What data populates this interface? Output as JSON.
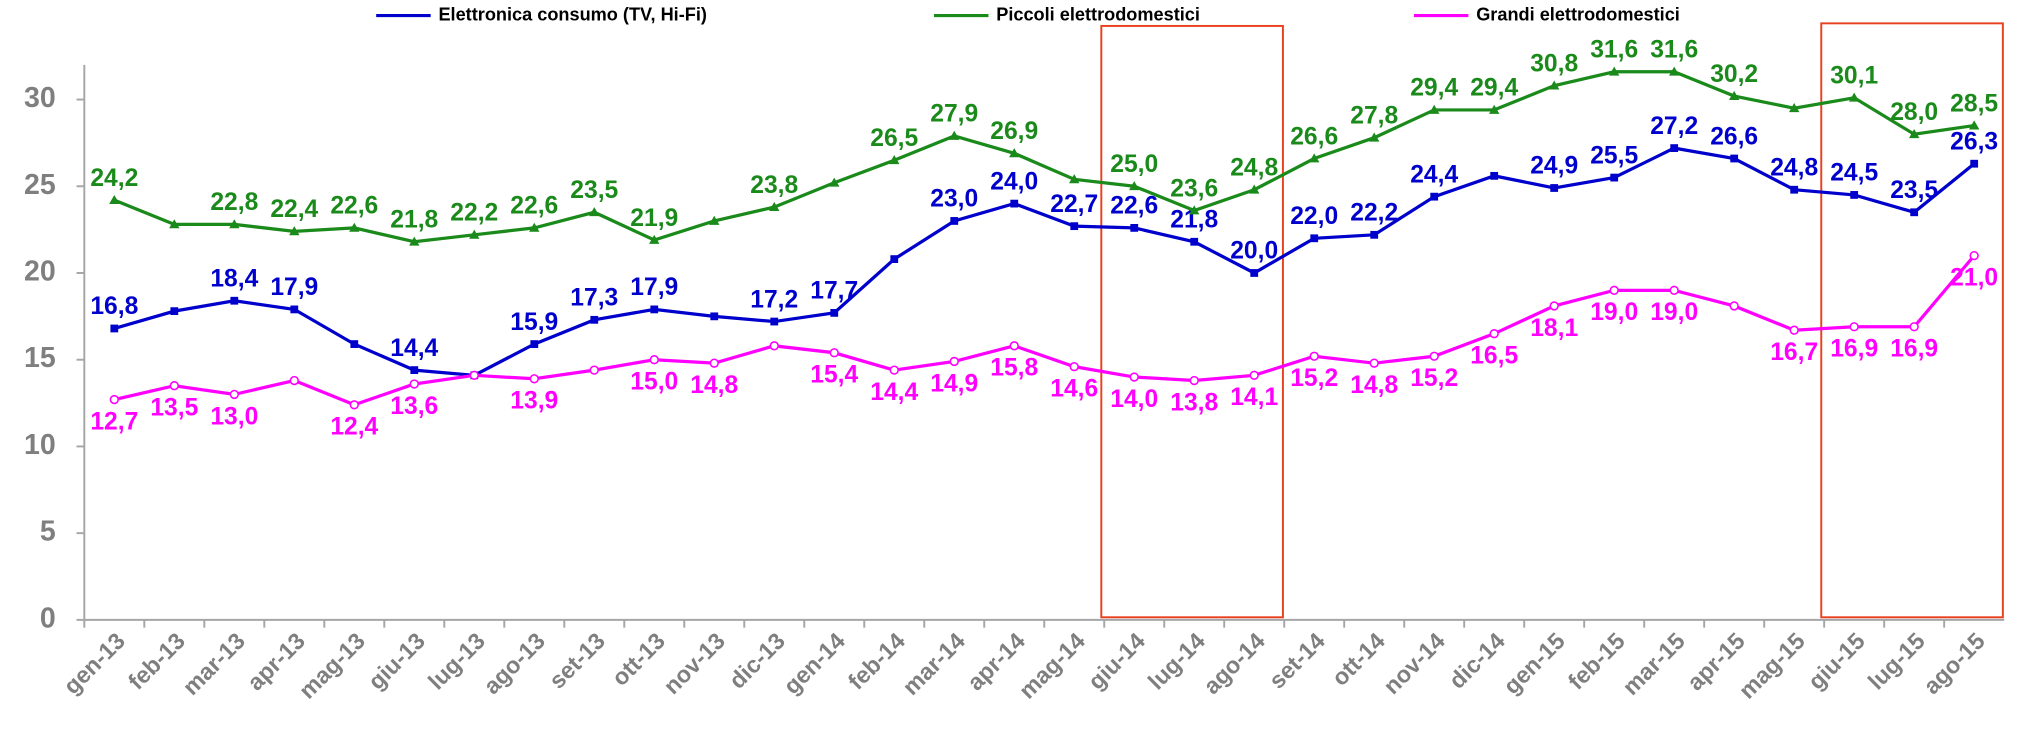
{
  "chart_data": {
    "type": "line",
    "categories": [
      "gen-13",
      "feb-13",
      "mar-13",
      "apr-13",
      "mag-13",
      "giu-13",
      "lug-13",
      "ago-13",
      "set-13",
      "ott-13",
      "nov-13",
      "dic-13",
      "gen-14",
      "feb-14",
      "mar-14",
      "apr-14",
      "mag-14",
      "giu-14",
      "lug-14",
      "ago-14",
      "set-14",
      "ott-14",
      "nov-14",
      "dic-14",
      "gen-15",
      "feb-15",
      "mar-15",
      "apr-15",
      "mag-15",
      "giu-15",
      "lug-15",
      "ago-15"
    ],
    "series": [
      {
        "name": "Elettronica consumo (TV, Hi-Fi)",
        "color": "#0000cc",
        "values": [
          16.8,
          17.8,
          18.4,
          17.9,
          15.9,
          14.4,
          14.1,
          15.9,
          17.3,
          17.9,
          17.5,
          17.2,
          17.7,
          20.8,
          23.0,
          24.0,
          22.7,
          22.6,
          21.8,
          20.0,
          22.0,
          22.2,
          24.4,
          25.6,
          24.9,
          25.5,
          27.2,
          26.6,
          24.8,
          24.5,
          23.5,
          26.3
        ],
        "value_labels": [
          "16,8",
          null,
          "18,4",
          "17,9",
          null,
          "14,4",
          null,
          "15,9",
          "17,3",
          "17,9",
          null,
          "17,2",
          "17,7",
          null,
          "23,0",
          "24,0",
          "22,7",
          "22,6",
          "21,8",
          "20,0",
          "22,0",
          "22,2",
          "24,4",
          null,
          "24,9",
          "25,5",
          "27,2",
          "26,6",
          "24,8",
          "24,5",
          "23,5",
          "26,3"
        ]
      },
      {
        "name": "Piccoli elettrodomestici",
        "color": "#1a8a1a",
        "values": [
          24.2,
          22.8,
          22.8,
          22.4,
          22.6,
          21.8,
          22.2,
          22.6,
          23.5,
          21.9,
          23.0,
          23.8,
          25.2,
          26.5,
          27.9,
          26.9,
          25.4,
          25.0,
          23.6,
          24.8,
          26.6,
          27.8,
          29.4,
          29.4,
          30.8,
          31.6,
          31.6,
          30.2,
          29.5,
          30.1,
          28.0,
          28.5
        ],
        "value_labels": [
          "24,2",
          null,
          "22,8",
          "22,4",
          "22,6",
          "21,8",
          "22,2",
          "22,6",
          "23,5",
          "21,9",
          null,
          "23,8",
          null,
          "26,5",
          "27,9",
          "26,9",
          null,
          "25,0",
          "23,6",
          "24,8",
          "26,6",
          "27,8",
          "29,4",
          "29,4",
          "30,8",
          "31,6",
          "31,6",
          "30,2",
          null,
          "30,1",
          "28,0",
          "28,5"
        ]
      },
      {
        "name": "Grandi elettrodomestici",
        "color": "#ff00ff",
        "values": [
          12.7,
          13.5,
          13.0,
          13.8,
          12.4,
          13.6,
          14.1,
          13.9,
          14.4,
          15.0,
          14.8,
          15.8,
          15.4,
          14.4,
          14.9,
          15.8,
          14.6,
          14.0,
          13.8,
          14.1,
          15.2,
          14.8,
          15.2,
          16.5,
          18.1,
          19.0,
          19.0,
          18.1,
          16.7,
          16.9,
          16.9,
          21.0
        ],
        "value_labels": [
          "12,7",
          "13,5",
          "13,0",
          null,
          "12,4",
          "13,6",
          null,
          "13,9",
          null,
          "15,0",
          "14,8",
          null,
          "15,4",
          "14,4",
          "14,9",
          "15,8",
          "14,6",
          "14,0",
          "13,8",
          "14,1",
          "15,2",
          "14,8",
          "15,2",
          "16,5",
          "18,1",
          "19,0",
          "19,0",
          null,
          "16,7",
          "16,9",
          "16,9",
          "21,0"
        ]
      }
    ],
    "ylim": [
      0,
      32
    ],
    "yticks": [
      0,
      5,
      10,
      15,
      20,
      25,
      30
    ]
  }
}
